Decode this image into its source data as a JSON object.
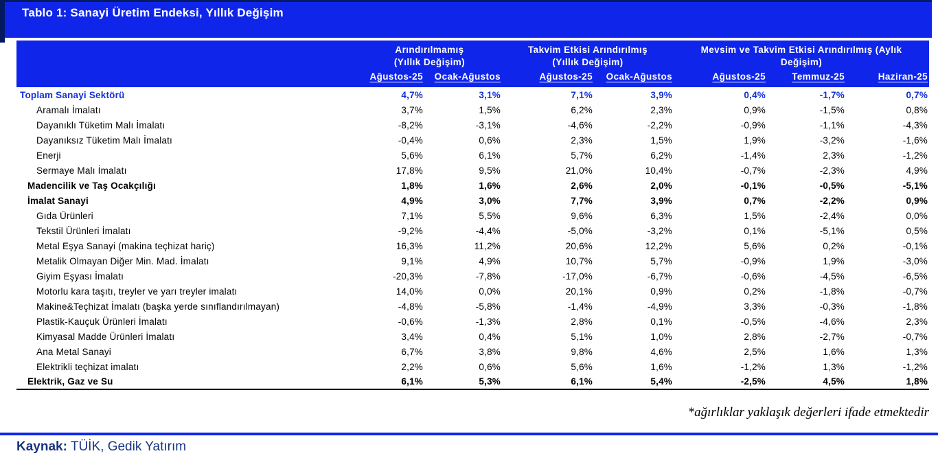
{
  "title": "Tablo 1: Sanayi Üretim Endeksi, Yıllık Değişim",
  "table": {
    "col_groups": [
      {
        "title_line1": "Arındırılmamış",
        "title_line2": "(Yıllık Değişim)",
        "columns": [
          "Ağustos-25",
          "Ocak-Ağustos"
        ]
      },
      {
        "title_line1": "Takvim Etkisi Arındırılmış",
        "title_line2": "(Yıllık Değişim)",
        "columns": [
          "Ağustos-25",
          "Ocak-Ağustos"
        ]
      },
      {
        "title_line1": "Mevsim ve Takvim Etkisi Arındırılmış (Aylık",
        "title_line2": "Değişim)",
        "columns": [
          "Ağustos-25",
          "Temmuz-25",
          "Haziran-25"
        ]
      }
    ],
    "rows": [
      {
        "label": "Toplam Sanayi Sektörü",
        "style": "total",
        "values": [
          "4,7%",
          "3,1%",
          "7,1%",
          "3,9%",
          "0,4%",
          "-1,7%",
          "0,7%"
        ]
      },
      {
        "label": "Aramalı İmalatı",
        "style": "sub",
        "values": [
          "3,7%",
          "1,5%",
          "6,2%",
          "2,3%",
          "0,9%",
          "-1,5%",
          "0,8%"
        ]
      },
      {
        "label": "Dayanıklı Tüketim Malı İmalatı",
        "style": "sub",
        "values": [
          "-8,2%",
          "-3,1%",
          "-4,6%",
          "-2,2%",
          "-0,9%",
          "-1,1%",
          "-4,3%"
        ]
      },
      {
        "label": "Dayanıksız Tüketim Malı İmalatı",
        "style": "sub",
        "values": [
          "-0,4%",
          "0,6%",
          "2,3%",
          "1,5%",
          "1,9%",
          "-3,2%",
          "-1,6%"
        ]
      },
      {
        "label": "Enerji",
        "style": "sub",
        "values": [
          "5,6%",
          "6,1%",
          "5,7%",
          "6,2%",
          "-1,4%",
          "2,3%",
          "-1,2%"
        ]
      },
      {
        "label": "Sermaye Malı İmalatı",
        "style": "sub",
        "values": [
          "17,8%",
          "9,5%",
          "21,0%",
          "10,4%",
          "-0,7%",
          "-2,3%",
          "4,9%"
        ]
      },
      {
        "label": "Madencilik ve Taş Ocakçılığı",
        "style": "section",
        "values": [
          "1,8%",
          "1,6%",
          "2,6%",
          "2,0%",
          "-0,1%",
          "-0,5%",
          "-5,1%"
        ]
      },
      {
        "label": "İmalat Sanayi",
        "style": "section",
        "values": [
          "4,9%",
          "3,0%",
          "7,7%",
          "3,9%",
          "0,7%",
          "-2,2%",
          "0,9%"
        ]
      },
      {
        "label": "Gıda Ürünleri",
        "style": "sub",
        "values": [
          "7,1%",
          "5,5%",
          "9,6%",
          "6,3%",
          "1,5%",
          "-2,4%",
          "0,0%"
        ]
      },
      {
        "label": "Tekstil Ürünleri İmalatı",
        "style": "sub",
        "values": [
          "-9,2%",
          "-4,4%",
          "-5,0%",
          "-3,2%",
          "0,1%",
          "-5,1%",
          "0,5%"
        ]
      },
      {
        "label": "Metal Eşya Sanayi (makina teçhizat hariç)",
        "style": "sub",
        "values": [
          "16,3%",
          "11,2%",
          "20,6%",
          "12,2%",
          "5,6%",
          "0,2%",
          "-0,1%"
        ]
      },
      {
        "label": "Metalik Olmayan Diğer Min. Mad. İmalatı",
        "style": "sub",
        "values": [
          "9,1%",
          "4,9%",
          "10,7%",
          "5,7%",
          "-0,9%",
          "1,9%",
          "-3,0%"
        ]
      },
      {
        "label": "Giyim Eşyası İmalatı",
        "style": "sub",
        "values": [
          "-20,3%",
          "-7,8%",
          "-17,0%",
          "-6,7%",
          "-0,6%",
          "-4,5%",
          "-6,5%"
        ]
      },
      {
        "label": "Motorlu kara taşıtı, treyler ve yarı treyler imalatı",
        "style": "sub",
        "values": [
          "14,0%",
          "0,0%",
          "20,1%",
          "0,9%",
          "0,2%",
          "-1,8%",
          "-0,7%"
        ]
      },
      {
        "label": "Makine&Teçhizat İmalatı (başka yerde sınıflandırılmayan)",
        "style": "sub",
        "values": [
          "-4,8%",
          "-5,8%",
          "-1,4%",
          "-4,9%",
          "3,3%",
          "-0,3%",
          "-1,8%"
        ]
      },
      {
        "label": "Plastik-Kauçuk Ürünleri İmalatı",
        "style": "sub",
        "values": [
          "-0,6%",
          "-1,3%",
          "2,8%",
          "0,1%",
          "-0,5%",
          "-4,6%",
          "2,3%"
        ]
      },
      {
        "label": "Kimyasal Madde Ürünleri İmalatı",
        "style": "sub",
        "values": [
          "3,4%",
          "0,4%",
          "5,1%",
          "1,0%",
          "2,8%",
          "-2,7%",
          "-0,7%"
        ]
      },
      {
        "label": "Ana Metal Sanayi",
        "style": "sub",
        "values": [
          "6,7%",
          "3,8%",
          "9,8%",
          "4,6%",
          "2,5%",
          "1,6%",
          "1,3%"
        ]
      },
      {
        "label": "Elektrikli teçhizat imalatı",
        "style": "sub",
        "values": [
          "2,2%",
          "0,6%",
          "5,6%",
          "1,6%",
          "-1,2%",
          "1,3%",
          "-1,2%"
        ]
      },
      {
        "label": "Elektrik, Gaz ve Su",
        "style": "section",
        "values": [
          "6,1%",
          "5,3%",
          "6,1%",
          "5,4%",
          "-2,5%",
          "4,5%",
          "1,8%"
        ]
      }
    ]
  },
  "footnote": "*ağırlıklar yaklaşık değerleri ifade etmektedir",
  "source": {
    "label": "Kaynak:",
    "text": " TÜİK, Gedik Yatırım"
  },
  "colors": {
    "header_blue": "#0f26ea",
    "text_blue": "#1130d8",
    "navy_shadow": "#041a60",
    "source_navy": "#17357e"
  }
}
